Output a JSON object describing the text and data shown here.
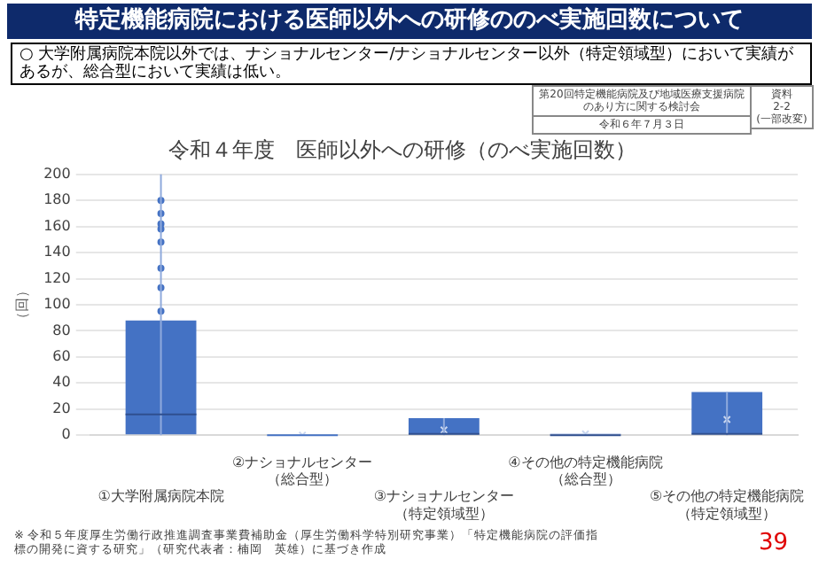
{
  "chart_data": {
    "type": "box",
    "title": "特定機能病院における医師以外への研修ののべ実施回数について",
    "subtitle": "令和４年度　医師以外への研修（のべ実施回数）",
    "ylabel": "（回）",
    "categories": [
      "①大学附属病院本院",
      "②ナショナルセンター（総合型）",
      "③ナショナルセンター（特定領域型）",
      "④その他の特定機能病院（総合型）",
      "⑤その他の特定機能病院（特定領域型）"
    ],
    "series": [
      {
        "color": "#4472c4",
        "boxes": [
          {
            "low": 0,
            "q1": 0,
            "median": 16,
            "q3": 88,
            "high": 200,
            "outliers": [
              95,
              113,
              128,
              148,
              158,
              162,
              170,
              180
            ]
          },
          {
            "low": 0,
            "q1": 0,
            "median": 0,
            "q3": 0,
            "high": 0,
            "mean": 0
          },
          {
            "low": 0,
            "q1": 0,
            "median": 1,
            "q3": 13,
            "high": 13,
            "mean": 4
          },
          {
            "low": 0,
            "q1": 0,
            "median": 0,
            "q3": 1,
            "high": 1,
            "mean": 1
          },
          {
            "low": 0,
            "q1": 1,
            "median": 1,
            "q3": 33,
            "high": 33,
            "mean": 12
          }
        ]
      }
    ],
    "ylim": [
      0,
      200
    ],
    "yticks": [
      0,
      20,
      40,
      60,
      80,
      100,
      120,
      140,
      160,
      180,
      200
    ],
    "grid": "y",
    "legend": false,
    "annotations": [
      "○ 大学附属病院本院以外では、ナショナルセンター/ナショナルセンター以外（特定領域型）において実績があるが、総合型において実績は低い。",
      "第20回特定機能病院及び地域医療支援病院のあり方に関する検討会",
      "令和６年７月３日",
      "資料\n2-2\n(一部改変)",
      "※ 令和５年度厚生労働行政推進調査事業費補助金（厚生労働科学特別研究事業）「特定機能病院の評価指標の開発に資する研究」（研究代表者：楠岡　英雄）に基づき作成",
      "39"
    ]
  }
}
